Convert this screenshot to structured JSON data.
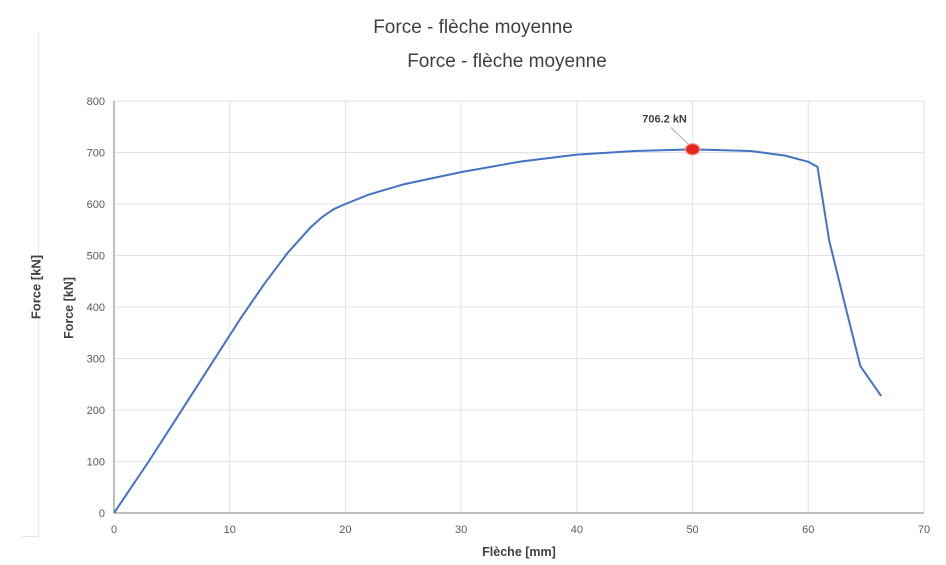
{
  "chart_data": {
    "type": "line",
    "title": "Force - flèche moyenne",
    "back_title": "Force - flèche moyenne",
    "back_ylabel": "Force [kN]",
    "xlabel": "Flèche [mm]",
    "ylabel": "Force [kN]",
    "xlim": [
      0,
      70
    ],
    "ylim": [
      0,
      800
    ],
    "xticks": [
      0,
      10,
      20,
      30,
      40,
      50,
      60,
      70
    ],
    "yticks": [
      0,
      100,
      200,
      300,
      400,
      500,
      600,
      700,
      800
    ],
    "grid": true,
    "line_color": "#4472c4",
    "marker_color": "#e8231f",
    "series": [
      {
        "x": [
          0,
          3,
          5,
          7,
          9,
          11,
          13,
          15,
          17,
          18,
          19,
          20,
          22,
          25,
          30,
          35,
          40,
          45,
          50,
          55,
          58,
          60,
          60.8,
          61.8,
          63,
          64.5,
          66.3
        ],
        "y": [
          0,
          100,
          170,
          240,
          310,
          380,
          445,
          505,
          555,
          575,
          590,
          600,
          618,
          638,
          662,
          682,
          696,
          703,
          706,
          703,
          694,
          682,
          672,
          530,
          420,
          285,
          227
        ]
      }
    ],
    "annotations": [
      {
        "text": "706.2 kN",
        "x": 50,
        "y": 706.2
      }
    ]
  }
}
